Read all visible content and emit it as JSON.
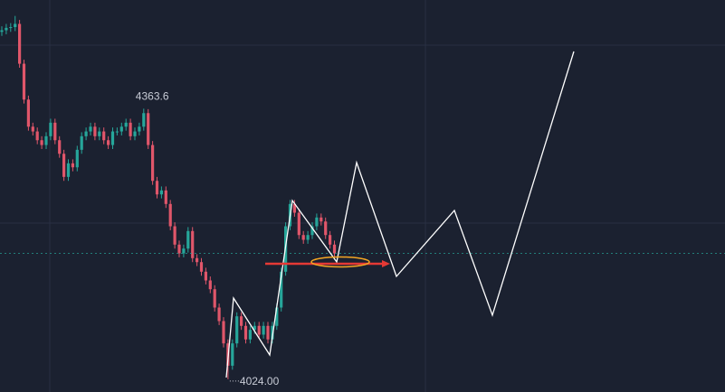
{
  "chart_data": {
    "type": "candlestick",
    "ylim": [
      4008,
      4500
    ],
    "up_color": "#26a69a",
    "down_color": "#e0566a",
    "open": [
      4460,
      4462,
      4465,
      4466,
      4470,
      4420,
      4375,
      4341,
      4335,
      4324,
      4318,
      4329,
      4346,
      4324,
      4307,
      4278,
      4295,
      4290,
      4312,
      4329,
      4335,
      4341,
      4329,
      4335,
      4324,
      4318,
      4335,
      4335,
      4341,
      4346,
      4329,
      4335,
      4341,
      4358,
      4318,
      4273,
      4256,
      4261,
      4244,
      4216,
      4193,
      4182,
      4188,
      4210,
      4176,
      4171,
      4159,
      4148,
      4137,
      4114,
      4097,
      4069,
      4041,
      4069,
      4103,
      4091,
      4074,
      4086,
      4091,
      4080,
      4091,
      4074,
      4091,
      4114,
      4159,
      4216,
      4244,
      4233,
      4205,
      4199,
      4205,
      4216,
      4227,
      4222,
      4205,
      4193
    ],
    "high": [
      4467,
      4470,
      4471,
      4480,
      4475,
      4425,
      4380,
      4346,
      4340,
      4329,
      4334,
      4351,
      4351,
      4329,
      4312,
      4300,
      4300,
      4317,
      4334,
      4340,
      4346,
      4346,
      4340,
      4340,
      4329,
      4340,
      4340,
      4346,
      4351,
      4351,
      4340,
      4346,
      4363.6,
      4363,
      4323,
      4278,
      4266,
      4266,
      4249,
      4221,
      4198,
      4193,
      4215,
      4215,
      4181,
      4176,
      4164,
      4153,
      4142,
      4119,
      4102,
      4074,
      4074,
      4108,
      4108,
      4096,
      4091,
      4096,
      4096,
      4096,
      4096,
      4096,
      4119,
      4164,
      4221,
      4249,
      4249,
      4238,
      4210,
      4210,
      4221,
      4232,
      4232,
      4227,
      4210,
      4198
    ],
    "low": [
      4455,
      4457,
      4460,
      4461,
      4415,
      4370,
      4336,
      4330,
      4319,
      4313,
      4313,
      4324,
      4319,
      4302,
      4273,
      4273,
      4285,
      4285,
      4307,
      4324,
      4330,
      4324,
      4324,
      4319,
      4313,
      4313,
      4330,
      4330,
      4336,
      4324,
      4324,
      4330,
      4336,
      4313,
      4268,
      4251,
      4251,
      4239,
      4211,
      4188,
      4177,
      4177,
      4183,
      4171,
      4166,
      4154,
      4143,
      4132,
      4109,
      4092,
      4064,
      4024,
      4036,
      4064,
      4086,
      4069,
      4069,
      4081,
      4075,
      4075,
      4069,
      4069,
      4086,
      4109,
      4154,
      4211,
      4228,
      4200,
      4194,
      4194,
      4200,
      4211,
      4217,
      4200,
      4188,
      4177
    ],
    "close": [
      4462,
      4465,
      4466,
      4470,
      4420,
      4375,
      4341,
      4335,
      4324,
      4318,
      4329,
      4346,
      4324,
      4307,
      4278,
      4295,
      4290,
      4312,
      4329,
      4335,
      4341,
      4329,
      4335,
      4324,
      4318,
      4335,
      4335,
      4341,
      4346,
      4329,
      4335,
      4341,
      4358,
      4318,
      4273,
      4256,
      4261,
      4244,
      4216,
      4193,
      4182,
      4188,
      4210,
      4176,
      4171,
      4159,
      4148,
      4137,
      4114,
      4097,
      4069,
      4041,
      4069,
      4103,
      4091,
      4074,
      4086,
      4091,
      4080,
      4091,
      4074,
      4091,
      4114,
      4159,
      4216,
      4244,
      4233,
      4205,
      4199,
      4205,
      4216,
      4227,
      4222,
      4205,
      4193,
      4182
    ],
    "high_label": 4363.6,
    "low_label": {
      "value": 4024,
      "label": "4024.00"
    }
  }
}
